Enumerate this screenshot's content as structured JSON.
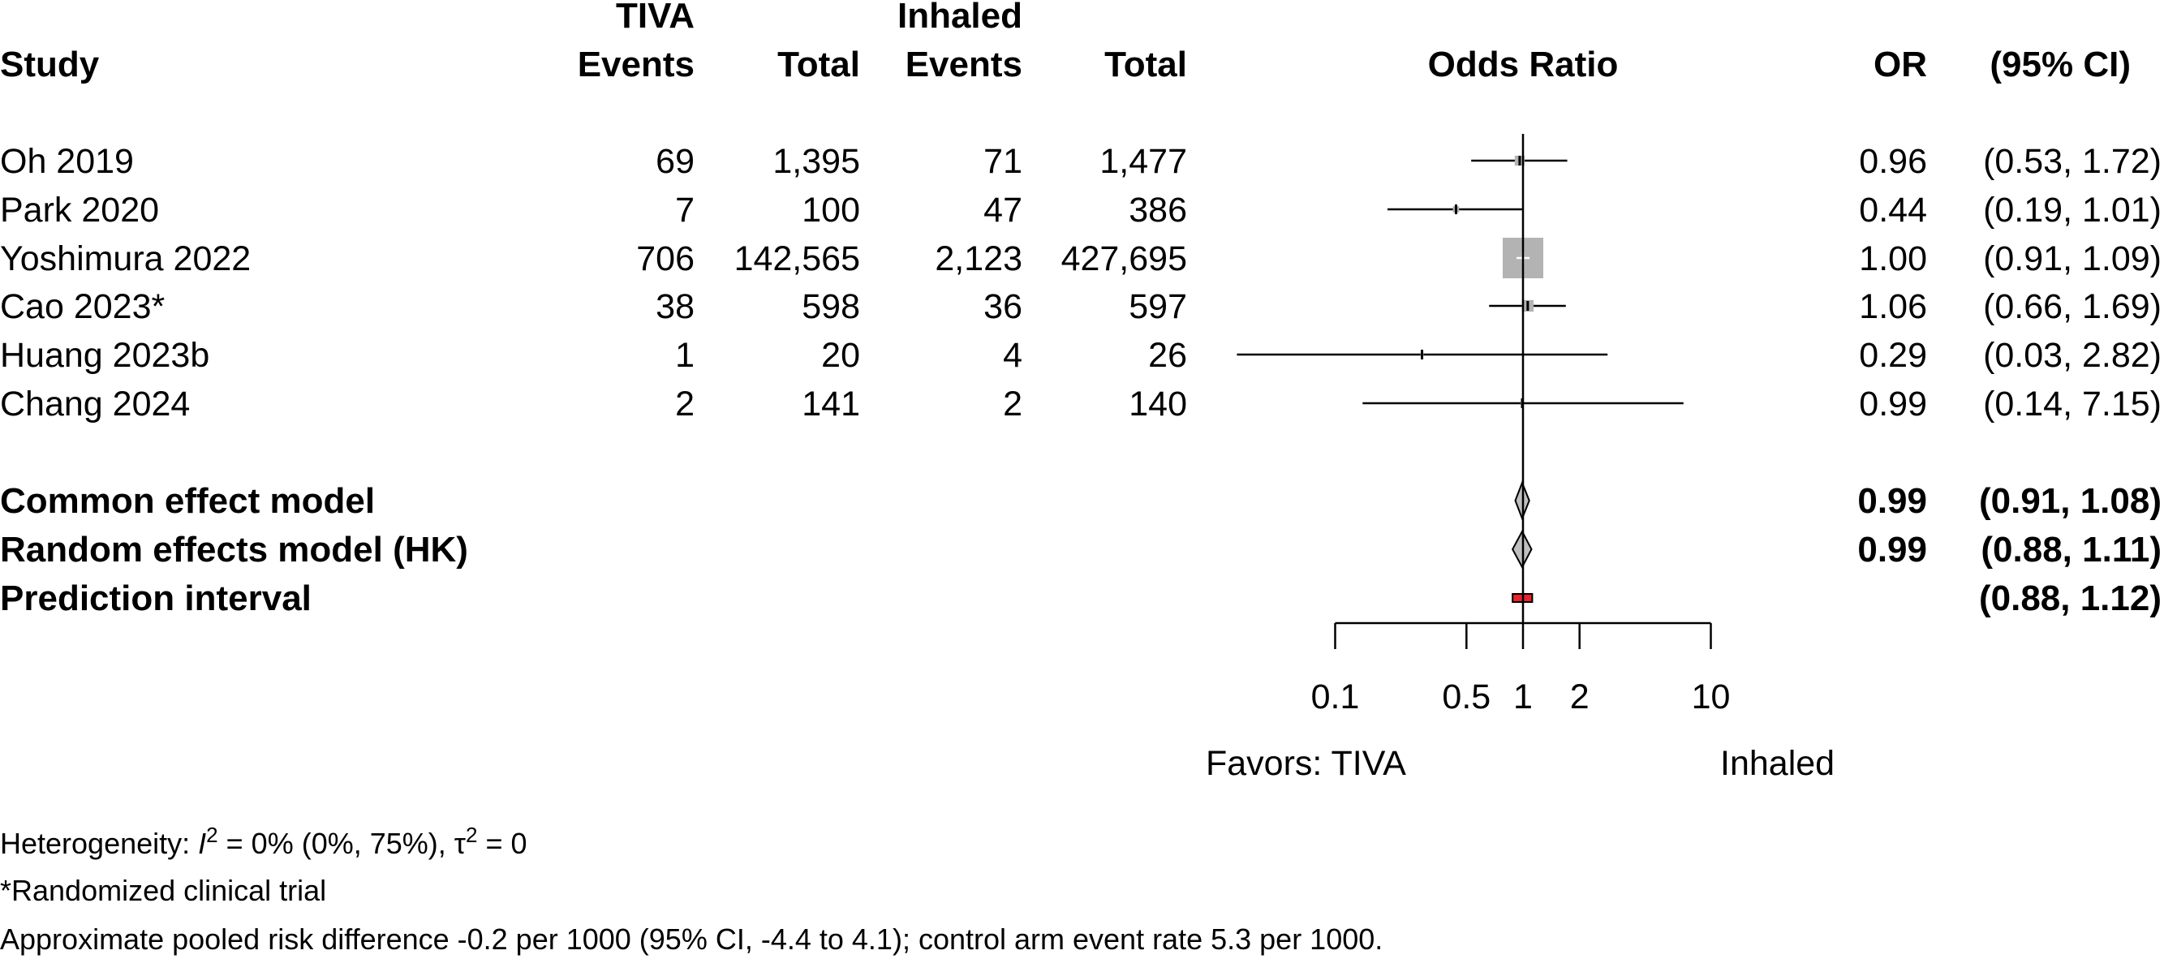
{
  "chart_data": {
    "type": "forest",
    "headers": {
      "study": "Study",
      "group1": "TIVA",
      "group2": "Inhaled",
      "events": "Events",
      "total": "Total",
      "effect": "Odds Ratio",
      "or": "OR",
      "ci": "(95% CI)"
    },
    "studies": [
      {
        "name": "Oh 2019",
        "e1": "69",
        "n1": "1,395",
        "e2": "71",
        "n2": "1,477",
        "or": 0.96,
        "lo": 0.53,
        "hi": 1.72,
        "weight": 0.05,
        "or_text": "0.96",
        "ci_text": "(0.53, 1.72)"
      },
      {
        "name": "Park 2020",
        "e1": "7",
        "n1": "100",
        "e2": "47",
        "n2": "386",
        "or": 0.44,
        "lo": 0.19,
        "hi": 1.01,
        "weight": 0.02,
        "or_text": "0.44",
        "ci_text": "(0.19, 1.01)"
      },
      {
        "name": "Yoshimura 2022",
        "e1": "706",
        "n1": "142,565",
        "e2": "2,123",
        "n2": "427,695",
        "or": 1.0,
        "lo": 0.91,
        "hi": 1.09,
        "weight": 0.85,
        "or_text": "1.00",
        "ci_text": "(0.91, 1.09)"
      },
      {
        "name": "Cao 2023*",
        "e1": "38",
        "n1": "598",
        "e2": "36",
        "n2": "597",
        "or": 1.06,
        "lo": 0.66,
        "hi": 1.69,
        "weight": 0.07,
        "or_text": "1.06",
        "ci_text": "(0.66, 1.69)"
      },
      {
        "name": "Huang 2023b",
        "e1": "1",
        "n1": "20",
        "e2": "4",
        "n2": "26",
        "or": 0.29,
        "lo": 0.03,
        "hi": 2.82,
        "weight": 0.005,
        "or_text": "0.29",
        "ci_text": "(0.03, 2.82)"
      },
      {
        "name": "Chang 2024",
        "e1": "2",
        "n1": "141",
        "e2": "2",
        "n2": "140",
        "or": 0.99,
        "lo": 0.14,
        "hi": 7.15,
        "weight": 0.005,
        "or_text": "0.99",
        "ci_text": "(0.14, 7.15)"
      }
    ],
    "pooled": [
      {
        "name": "Common effect model",
        "or": 0.99,
        "lo": 0.91,
        "hi": 1.08,
        "or_text": "0.99",
        "ci_text": "(0.91, 1.08)"
      },
      {
        "name": "Random effects model (HK)",
        "or": 0.99,
        "lo": 0.88,
        "hi": 1.11,
        "or_text": "0.99",
        "ci_text": "(0.88, 1.11)"
      }
    ],
    "prediction": {
      "name": "Prediction interval",
      "lo": 0.88,
      "hi": 1.12,
      "or_text": "",
      "ci_text": "(0.88, 1.12)"
    },
    "x_axis": {
      "scale": "log",
      "ticks": [
        0.1,
        0.5,
        1,
        2,
        10
      ],
      "tick_labels": [
        "0.1",
        "0.5",
        "1",
        "2",
        "10"
      ],
      "xlim": [
        0.1,
        10
      ],
      "reference": 1
    },
    "favors_left": "Favors: TIVA",
    "favors_right": "Inhaled",
    "footnotes": {
      "heterogeneity": {
        "prefix": "Heterogeneity: ",
        "i_symbol": "I",
        "i_sup": "2",
        "i_rest": " = 0% (0%, 75%), ",
        "tau_symbol": "τ",
        "tau_sup": "2",
        "tau_rest": " = 0"
      },
      "rct_note": "*Randomized clinical trial",
      "risk_difference": "Approximate pooled risk difference -0.2 per 1000 (95% CI, -4.4 to 4.1); control arm event rate 5.3 per 1000."
    },
    "colors": {
      "square": "#b3b3b3",
      "diamond": "#bfbfbf",
      "prediction": "#e8232a",
      "line": "#000000"
    }
  }
}
